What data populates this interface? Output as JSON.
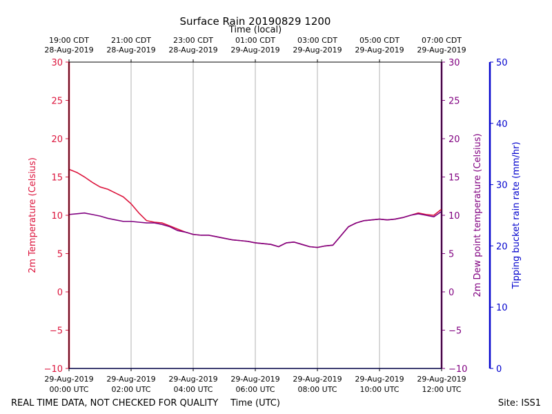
{
  "chart_data": {
    "type": "line",
    "title": "Surface Rain 20190829 1200",
    "top_axis_label": "Time (local)",
    "xlabel": "Time (UTC)",
    "footer_left": "REAL TIME DATA, NOT CHECKED FOR QUALITY",
    "footer_right": "Site: ISS1",
    "x_ticks_utc": [
      {
        "date": "29-Aug-2019",
        "time": "00:00 UTC"
      },
      {
        "date": "29-Aug-2019",
        "time": "02:00 UTC"
      },
      {
        "date": "29-Aug-2019",
        "time": "04:00 UTC"
      },
      {
        "date": "29-Aug-2019",
        "time": "06:00 UTC"
      },
      {
        "date": "29-Aug-2019",
        "time": "08:00 UTC"
      },
      {
        "date": "29-Aug-2019",
        "time": "10:00 UTC"
      },
      {
        "date": "29-Aug-2019",
        "time": "12:00 UTC"
      }
    ],
    "x_ticks_local": [
      {
        "time": "19:00 CDT",
        "date": "28-Aug-2019"
      },
      {
        "time": "21:00 CDT",
        "date": "28-Aug-2019"
      },
      {
        "time": "23:00 CDT",
        "date": "28-Aug-2019"
      },
      {
        "time": "01:00 CDT",
        "date": "29-Aug-2019"
      },
      {
        "time": "03:00 CDT",
        "date": "29-Aug-2019"
      },
      {
        "time": "05:00 CDT",
        "date": "29-Aug-2019"
      },
      {
        "time": "07:00 CDT",
        "date": "29-Aug-2019"
      }
    ],
    "x_hours": [
      0,
      0.25,
      0.5,
      0.75,
      1,
      1.25,
      1.5,
      1.75,
      2,
      2.25,
      2.5,
      2.75,
      3,
      3.25,
      3.5,
      3.75,
      4,
      4.25,
      4.5,
      4.75,
      5,
      5.25,
      5.5,
      5.75,
      6,
      6.25,
      6.5,
      6.75,
      7,
      7.25,
      7.5,
      7.75,
      8,
      8.25,
      8.5,
      8.75,
      9,
      9.25,
      9.5,
      9.75,
      10,
      10.25,
      10.5,
      10.75,
      11,
      11.25,
      11.5,
      11.75,
      12
    ],
    "xlim": [
      0,
      12
    ],
    "grid": true,
    "y_left": {
      "label": "2m Temperature (Celsius)",
      "ylim": [
        -10,
        30
      ],
      "ticks": [
        "−10",
        "−5",
        "0",
        "5",
        "10",
        "15",
        "20",
        "25",
        "30"
      ],
      "color": "#dc143c"
    },
    "y_right1": {
      "label": "2m Dew point temperature (Celsius)",
      "ylim": [
        -10,
        30
      ],
      "ticks": [
        "−10",
        "−5",
        "0",
        "5",
        "10",
        "15",
        "20",
        "25",
        "30"
      ],
      "color": "#800080"
    },
    "y_right2": {
      "label": "Tipping bucket rain rate (mm/hr)",
      "ylim": [
        0,
        50
      ],
      "ticks": [
        "0",
        "10",
        "20",
        "30",
        "40",
        "50"
      ],
      "color": "#0000cd"
    },
    "series": [
      {
        "axis": "left",
        "color": "#dc143c",
        "values": [
          16.0,
          15.6,
          15.0,
          14.3,
          13.7,
          13.4,
          12.9,
          12.4,
          11.5,
          10.3,
          9.3,
          9.1,
          9.0,
          8.6,
          8.2,
          7.8,
          7.5,
          7.4,
          7.4,
          7.2,
          7.0,
          6.8,
          6.7,
          6.6,
          6.4,
          6.3,
          6.2,
          5.9,
          6.4,
          6.5,
          6.2,
          5.9,
          5.8,
          6.0,
          6.1,
          7.3,
          8.5,
          9.0,
          9.3,
          9.4,
          9.5,
          9.4,
          9.5,
          9.7,
          10.0,
          10.3,
          10.1,
          10.0,
          10.8
        ]
      },
      {
        "axis": "right1",
        "color": "#800080",
        "values": [
          10.1,
          10.2,
          10.3,
          10.1,
          9.9,
          9.6,
          9.4,
          9.2,
          9.2,
          9.1,
          9.0,
          9.0,
          8.8,
          8.5,
          8.0,
          7.8,
          7.5,
          7.4,
          7.4,
          7.2,
          7.0,
          6.8,
          6.7,
          6.6,
          6.4,
          6.3,
          6.2,
          5.9,
          6.4,
          6.5,
          6.2,
          5.9,
          5.8,
          6.0,
          6.1,
          7.3,
          8.5,
          9.0,
          9.3,
          9.4,
          9.5,
          9.4,
          9.5,
          9.7,
          10.0,
          10.2,
          10.0,
          9.8,
          10.5
        ]
      }
    ]
  }
}
